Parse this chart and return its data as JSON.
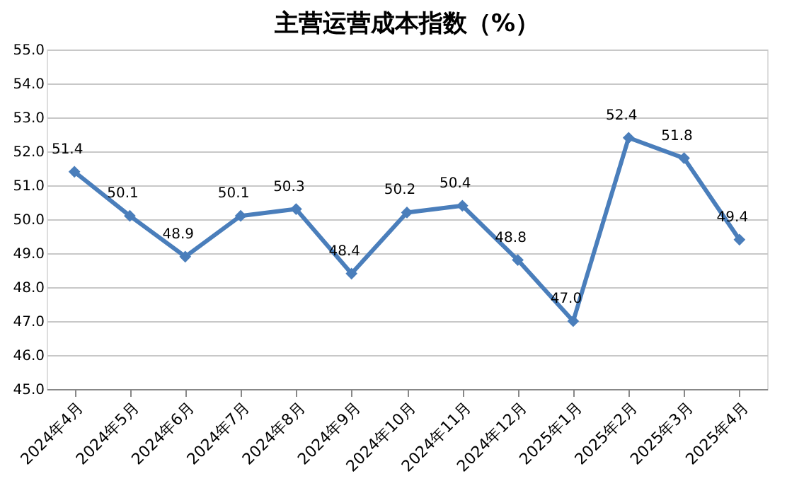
{
  "chart_data": {
    "type": "line",
    "title": "主营运营成本指数（%）",
    "categories": [
      "2024年4月",
      "2024年5月",
      "2024年6月",
      "2024年7月",
      "2024年8月",
      "2024年9月",
      "2024年10月",
      "2024年11月",
      "2024年12月",
      "2025年1月",
      "2025年2月",
      "2025年3月",
      "2025年4月"
    ],
    "series": [
      {
        "color": "#4a7ebb",
        "values": [
          51.4,
          50.1,
          48.9,
          50.1,
          50.3,
          48.4,
          50.2,
          50.4,
          48.8,
          47.0,
          52.4,
          51.8,
          49.4
        ]
      }
    ],
    "ylim": [
      45,
      55
    ],
    "yticks": [
      {
        "value": 45,
        "label": "45.0"
      },
      {
        "value": 46,
        "label": "46.0"
      },
      {
        "value": 47,
        "label": "47.0"
      },
      {
        "value": 48,
        "label": "48.0"
      },
      {
        "value": 49,
        "label": "49.0"
      },
      {
        "value": 50,
        "label": "50.0"
      },
      {
        "value": 51,
        "label": "51.0"
      },
      {
        "value": 52,
        "label": "52.0"
      },
      {
        "value": 53,
        "label": "53.0"
      },
      {
        "value": 54,
        "label": "54.0"
      },
      {
        "value": 55,
        "label": "55.0"
      }
    ],
    "value_labels": [
      "51.4",
      "50.1",
      "48.9",
      "50.1",
      "50.3",
      "48.4",
      "50.2",
      "50.4",
      "48.8",
      "47.0",
      "52.4",
      "51.8",
      "49.4"
    ],
    "grid": "y",
    "marker": "diamond",
    "line_style": "solid"
  }
}
